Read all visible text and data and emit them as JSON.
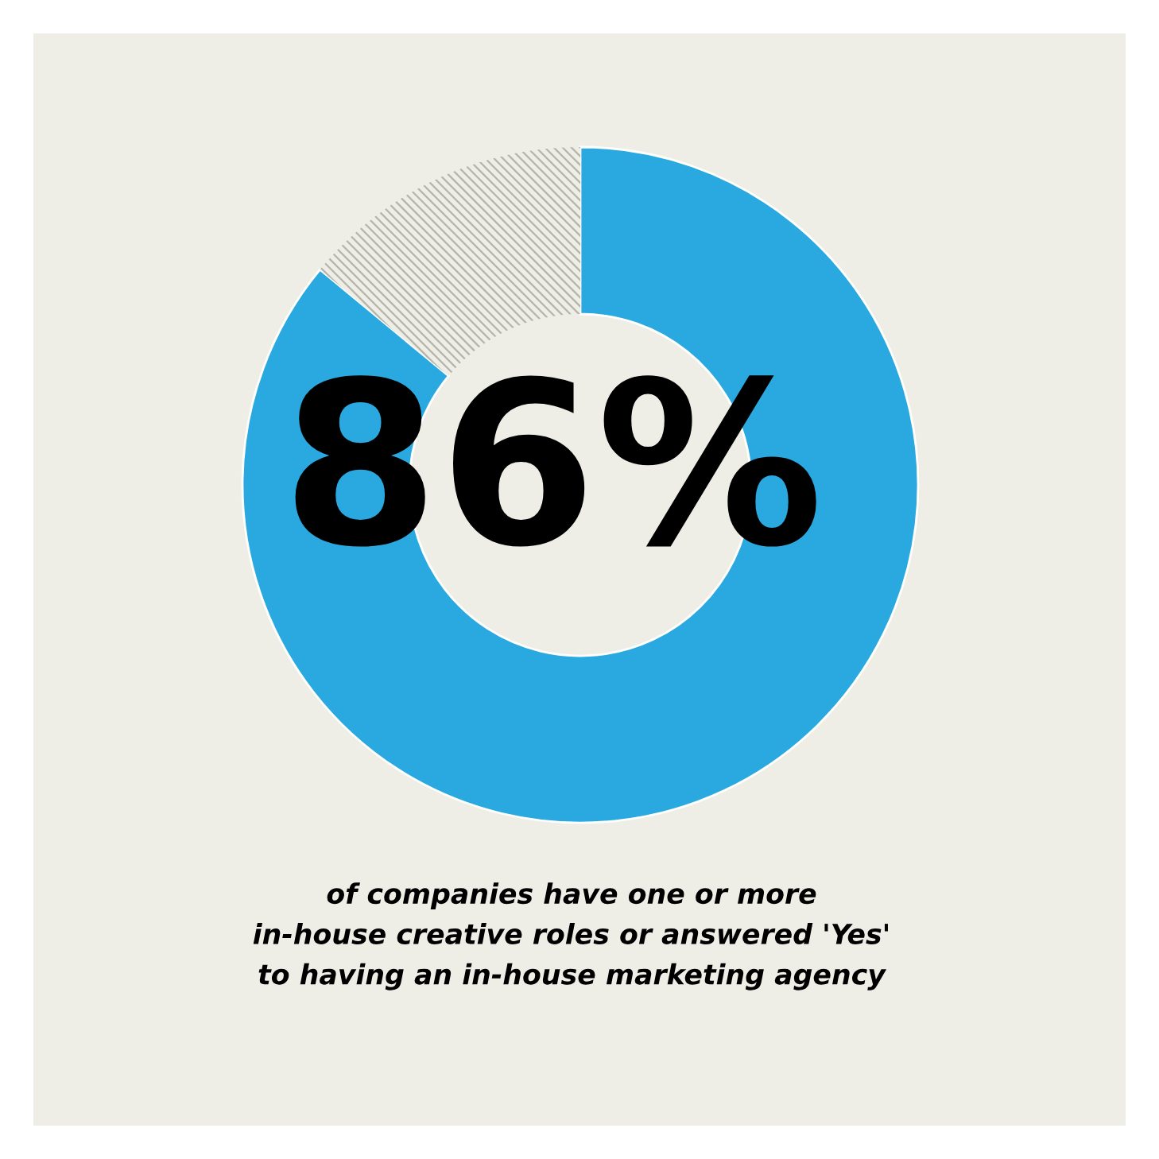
{
  "chart_data": {
    "type": "donut",
    "categories": [
      null,
      null
    ],
    "values": [
      86,
      14
    ],
    "colors": [
      "#29a9e0",
      "#b5b4aa"
    ],
    "value_labels": [
      "86%",
      null
    ],
    "annotations": [
      "of companies have one or more\nin-house creative roles or answered 'Yes'\nto having an in-house marketing agency"
    ]
  }
}
